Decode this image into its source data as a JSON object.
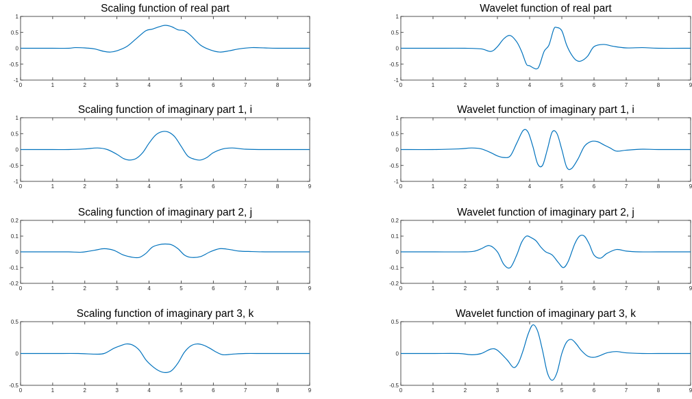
{
  "chart_data": [
    {
      "type": "line",
      "title": "Scaling function of real part",
      "xlim": [
        0,
        9
      ],
      "ylim": [
        -1,
        1
      ],
      "xticks": [
        "0",
        "1",
        "2",
        "3",
        "4",
        "5",
        "6",
        "7",
        "8",
        "9"
      ],
      "yticks": [
        "1",
        "0.5",
        "0",
        "-0.5",
        "-1"
      ],
      "line_color": "#0072BD",
      "x": [
        0,
        1,
        1.5,
        1.7,
        2.0,
        2.3,
        2.6,
        2.8,
        3.0,
        3.3,
        3.6,
        3.9,
        4.1,
        4.3,
        4.5,
        4.7,
        4.9,
        5.1,
        5.3,
        5.6,
        5.9,
        6.2,
        6.5,
        6.8,
        7.2,
        7.6,
        8,
        9
      ],
      "y": [
        0,
        0,
        0,
        0.02,
        0.01,
        -0.02,
        -0.1,
        -0.12,
        -0.08,
        0.05,
        0.3,
        0.55,
        0.6,
        0.67,
        0.72,
        0.68,
        0.58,
        0.55,
        0.4,
        0.1,
        -0.05,
        -0.12,
        -0.08,
        -0.02,
        0.02,
        0.01,
        0,
        0
      ]
    },
    {
      "type": "line",
      "title": "Wavelet function of real part",
      "xlim": [
        0,
        9
      ],
      "ylim": [
        -1,
        1
      ],
      "xticks": [
        "0",
        "1",
        "2",
        "3",
        "4",
        "5",
        "6",
        "7",
        "8",
        "9"
      ],
      "yticks": [
        "1",
        "0.5",
        "0",
        "-0.5",
        "-1"
      ],
      "line_color": "#0072BD",
      "x": [
        0,
        1,
        2,
        2.5,
        2.8,
        3.0,
        3.2,
        3.4,
        3.6,
        3.75,
        3.9,
        4.0,
        4.2,
        4.3,
        4.45,
        4.6,
        4.75,
        4.85,
        5.0,
        5.15,
        5.3,
        5.45,
        5.6,
        5.8,
        6.0,
        6.3,
        6.6,
        7.0,
        7.5,
        8,
        9
      ],
      "y": [
        0,
        0,
        0,
        -0.02,
        -0.1,
        0.05,
        0.3,
        0.4,
        0.2,
        -0.1,
        -0.5,
        -0.55,
        -0.65,
        -0.55,
        -0.1,
        0.1,
        0.6,
        0.65,
        0.55,
        0.1,
        -0.2,
        -0.38,
        -0.4,
        -0.25,
        0.05,
        0.12,
        0.06,
        0.01,
        0.02,
        0,
        0
      ]
    },
    {
      "type": "line",
      "title": "Scaling function of imaginary part 1, i",
      "xlim": [
        0,
        9
      ],
      "ylim": [
        -1,
        1
      ],
      "xticks": [
        "0",
        "1",
        "2",
        "3",
        "4",
        "5",
        "6",
        "7",
        "8",
        "9"
      ],
      "yticks": [
        "1",
        "0.5",
        "0",
        "-0.5",
        "-1"
      ],
      "line_color": "#0072BD",
      "x": [
        0,
        1,
        1.5,
        2.0,
        2.4,
        2.7,
        3.0,
        3.2,
        3.4,
        3.6,
        3.8,
        4.0,
        4.2,
        4.4,
        4.6,
        4.8,
        5.0,
        5.2,
        5.4,
        5.6,
        5.8,
        6.0,
        6.3,
        6.6,
        7.0,
        7.5,
        8,
        9
      ],
      "y": [
        0,
        0,
        0,
        0.02,
        0.05,
        0.0,
        -0.15,
        -0.28,
        -0.33,
        -0.28,
        -0.1,
        0.2,
        0.45,
        0.56,
        0.55,
        0.4,
        0.1,
        -0.2,
        -0.3,
        -0.33,
        -0.25,
        -0.1,
        0.02,
        0.05,
        0.01,
        0,
        0,
        0
      ]
    },
    {
      "type": "line",
      "title": "Wavelet function of imaginary part 1, i",
      "xlim": [
        0,
        9
      ],
      "ylim": [
        -1,
        1
      ],
      "xticks": [
        "0",
        "1",
        "2",
        "3",
        "4",
        "5",
        "6",
        "7",
        "8",
        "9"
      ],
      "yticks": [
        "1",
        "0.5",
        "0",
        "-0.5",
        "-1"
      ],
      "line_color": "#0072BD",
      "x": [
        0,
        1,
        1.8,
        2.2,
        2.5,
        2.8,
        3.0,
        3.2,
        3.4,
        3.6,
        3.8,
        3.95,
        4.1,
        4.25,
        4.4,
        4.55,
        4.7,
        4.85,
        5.0,
        5.15,
        5.3,
        5.5,
        5.7,
        5.9,
        6.1,
        6.3,
        6.5,
        6.7,
        7.0,
        7.5,
        8,
        9
      ],
      "y": [
        0,
        0,
        0.02,
        0.05,
        0.02,
        -0.1,
        -0.2,
        -0.25,
        -0.2,
        0.2,
        0.6,
        0.55,
        0.1,
        -0.45,
        -0.5,
        0.0,
        0.55,
        0.5,
        0.0,
        -0.55,
        -0.6,
        -0.3,
        0.1,
        0.25,
        0.25,
        0.15,
        0.05,
        -0.05,
        -0.02,
        0.01,
        0,
        0
      ]
    },
    {
      "type": "line",
      "title": "Scaling function of imaginary part 2, j",
      "xlim": [
        0,
        9
      ],
      "ylim": [
        -0.2,
        0.2
      ],
      "xticks": [
        "0",
        "1",
        "2",
        "3",
        "4",
        "5",
        "6",
        "7",
        "8",
        "9"
      ],
      "yticks": [
        "0.2",
        "0.1",
        "0",
        "-0.1",
        "-0.2"
      ],
      "line_color": "#0072BD",
      "x": [
        0,
        1,
        1.5,
        1.9,
        2.3,
        2.6,
        2.9,
        3.2,
        3.5,
        3.7,
        3.9,
        4.1,
        4.3,
        4.5,
        4.7,
        4.9,
        5.1,
        5.3,
        5.6,
        5.9,
        6.2,
        6.5,
        6.8,
        7.2,
        7.6,
        8,
        9
      ],
      "y": [
        0,
        0,
        0,
        -0.002,
        0.01,
        0.02,
        0.01,
        -0.02,
        -0.035,
        -0.035,
        -0.01,
        0.03,
        0.045,
        0.05,
        0.045,
        0.02,
        -0.02,
        -0.035,
        -0.03,
        0.0,
        0.02,
        0.015,
        0.005,
        0.002,
        0,
        0,
        0
      ]
    },
    {
      "type": "line",
      "title": "Wavelet function of imaginary part 2, j",
      "xlim": [
        0,
        9
      ],
      "ylim": [
        -0.2,
        0.2
      ],
      "xticks": [
        "0",
        "1",
        "2",
        "3",
        "4",
        "5",
        "6",
        "7",
        "8",
        "9"
      ],
      "yticks": [
        "0.2",
        "0.1",
        "0",
        "-0.1",
        "-0.2"
      ],
      "line_color": "#0072BD",
      "x": [
        0,
        1,
        2.0,
        2.3,
        2.5,
        2.75,
        3.0,
        3.2,
        3.4,
        3.6,
        3.75,
        3.9,
        4.05,
        4.2,
        4.35,
        4.5,
        4.7,
        4.9,
        5.05,
        5.2,
        5.4,
        5.55,
        5.7,
        5.85,
        6.0,
        6.2,
        6.4,
        6.7,
        7.0,
        7.4,
        8,
        9
      ],
      "y": [
        0,
        0,
        0,
        0.005,
        0.02,
        0.04,
        0.0,
        -0.08,
        -0.1,
        -0.02,
        0.06,
        0.1,
        0.09,
        0.07,
        0.03,
        0.0,
        -0.02,
        -0.07,
        -0.1,
        -0.06,
        0.05,
        0.1,
        0.1,
        0.05,
        -0.02,
        -0.04,
        -0.01,
        0.015,
        0.005,
        0,
        0,
        0
      ]
    },
    {
      "type": "line",
      "title": "Scaling function of imaginary part 3, k",
      "xlim": [
        0,
        9
      ],
      "ylim": [
        -0.5,
        0.5
      ],
      "xticks": [
        "0",
        "1",
        "2",
        "3",
        "4",
        "5",
        "6",
        "7",
        "8",
        "9"
      ],
      "yticks": [
        "0.5",
        "0",
        "-0.5"
      ],
      "line_color": "#0072BD",
      "x": [
        0,
        1,
        1.8,
        2.3,
        2.6,
        2.9,
        3.1,
        3.3,
        3.5,
        3.7,
        3.9,
        4.1,
        4.3,
        4.5,
        4.7,
        4.9,
        5.1,
        5.3,
        5.5,
        5.7,
        5.9,
        6.1,
        6.3,
        6.6,
        7.0,
        7.5,
        8,
        9
      ],
      "y": [
        0,
        0,
        0,
        -0.01,
        0.0,
        0.08,
        0.12,
        0.15,
        0.13,
        0.05,
        -0.1,
        -0.2,
        -0.27,
        -0.3,
        -0.27,
        -0.15,
        0.02,
        0.12,
        0.15,
        0.13,
        0.08,
        0.02,
        -0.02,
        -0.01,
        0,
        0,
        0,
        0
      ]
    },
    {
      "type": "line",
      "title": "Wavelet function of imaginary part 3, k",
      "xlim": [
        0,
        9
      ],
      "ylim": [
        -0.5,
        0.5
      ],
      "xticks": [
        "0",
        "1",
        "2",
        "3",
        "4",
        "5",
        "6",
        "7",
        "8",
        "9"
      ],
      "yticks": [
        "0.5",
        "0",
        "-0.5"
      ],
      "line_color": "#0072BD",
      "x": [
        0,
        1,
        1.8,
        2.2,
        2.5,
        2.8,
        3.0,
        3.3,
        3.5,
        3.65,
        3.8,
        3.95,
        4.1,
        4.25,
        4.4,
        4.55,
        4.7,
        4.85,
        5.0,
        5.15,
        5.3,
        5.45,
        5.6,
        5.8,
        6.0,
        6.2,
        6.4,
        6.7,
        7.0,
        7.5,
        8,
        9
      ],
      "y": [
        0,
        0,
        0,
        -0.02,
        0.0,
        0.07,
        0.05,
        -0.1,
        -0.22,
        -0.15,
        0.05,
        0.3,
        0.45,
        0.35,
        0.05,
        -0.3,
        -0.42,
        -0.3,
        0.0,
        0.18,
        0.22,
        0.15,
        0.05,
        -0.04,
        -0.06,
        -0.03,
        0.01,
        0.03,
        0.01,
        0,
        0,
        0
      ]
    }
  ]
}
